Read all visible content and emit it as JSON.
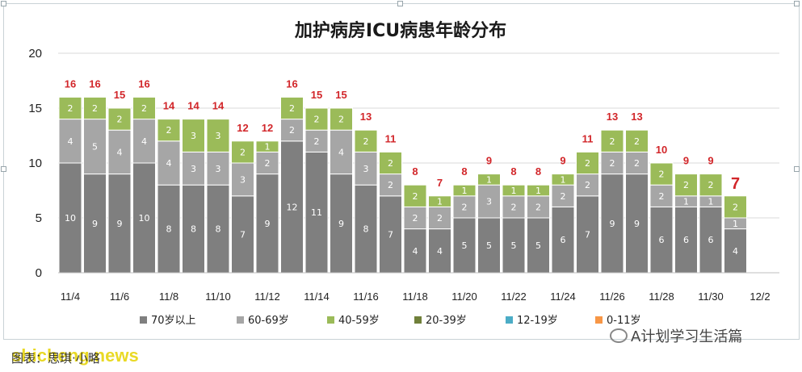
{
  "chart_data": {
    "type": "bar",
    "stacked": true,
    "title": "加护病房ICU病患年龄分布",
    "ylim": [
      0,
      20
    ],
    "yticks": [
      0,
      5,
      10,
      15,
      20
    ],
    "grid": true,
    "legend_position": "bottom",
    "categories": [
      "11/4",
      "11/5",
      "11/6",
      "11/7",
      "11/8",
      "11/9",
      "11/10",
      "11/11",
      "11/12",
      "11/13",
      "11/14",
      "11/15",
      "11/16",
      "11/17",
      "11/18",
      "11/19",
      "11/20",
      "11/21",
      "11/22",
      "11/23",
      "11/24",
      "11/25",
      "11/26",
      "11/27",
      "11/28",
      "11/29",
      "11/30",
      "12/1"
    ],
    "x_tick_labels": [
      "11/4",
      "11/6",
      "11/8",
      "11/10",
      "11/12",
      "11/14",
      "11/16",
      "11/18",
      "11/20",
      "11/22",
      "11/24",
      "11/26",
      "11/28",
      "11/30",
      "12/2"
    ],
    "series": [
      {
        "name": "70岁以上",
        "color": "#7f7f7f",
        "values": [
          10,
          9,
          9,
          10,
          8,
          8,
          8,
          7,
          9,
          12,
          11,
          9,
          8,
          7,
          4,
          4,
          5,
          5,
          5,
          5,
          6,
          7,
          9,
          9,
          6,
          6,
          6,
          4
        ]
      },
      {
        "name": "60-69岁",
        "color": "#a6a6a6",
        "values": [
          4,
          5,
          4,
          4,
          4,
          3,
          3,
          3,
          2,
          2,
          2,
          4,
          3,
          2,
          2,
          2,
          2,
          3,
          2,
          2,
          2,
          2,
          2,
          2,
          2,
          1,
          1,
          1
        ]
      },
      {
        "name": "40-59岁",
        "color": "#9bbb59",
        "values": [
          2,
          2,
          2,
          2,
          2,
          3,
          3,
          2,
          1,
          2,
          2,
          2,
          2,
          2,
          2,
          1,
          1,
          1,
          1,
          1,
          1,
          2,
          2,
          2,
          2,
          2,
          2,
          2
        ]
      },
      {
        "name": "20-39岁",
        "color": "#70803a",
        "values": [
          0,
          0,
          0,
          0,
          0,
          0,
          0,
          0,
          0,
          0,
          0,
          0,
          0,
          0,
          0,
          0,
          0,
          0,
          0,
          0,
          0,
          0,
          0,
          0,
          0,
          0,
          0,
          0
        ]
      },
      {
        "name": "12-19岁",
        "color": "#4bacc6",
        "values": [
          0,
          0,
          0,
          0,
          0,
          0,
          0,
          0,
          0,
          0,
          0,
          0,
          0,
          0,
          0,
          0,
          0,
          0,
          0,
          0,
          0,
          0,
          0,
          0,
          0,
          0,
          0,
          0
        ]
      },
      {
        "name": "0-11岁",
        "color": "#f79646",
        "values": [
          0,
          0,
          0,
          0,
          0,
          0,
          0,
          0,
          0,
          0,
          0,
          0,
          0,
          0,
          0,
          0,
          0,
          0,
          0,
          0,
          0,
          0,
          0,
          0,
          0,
          0,
          0,
          0
        ]
      }
    ],
    "totals": [
      16,
      16,
      15,
      16,
      14,
      14,
      14,
      12,
      12,
      16,
      15,
      15,
      13,
      11,
      8,
      7,
      8,
      9,
      8,
      8,
      9,
      11,
      13,
      13,
      10,
      9,
      9,
      7
    ]
  },
  "footer": {
    "caption": "图表：思琪·小略",
    "watermark": "shicheng.news",
    "wechat_account": "A计划学习生活篇"
  }
}
